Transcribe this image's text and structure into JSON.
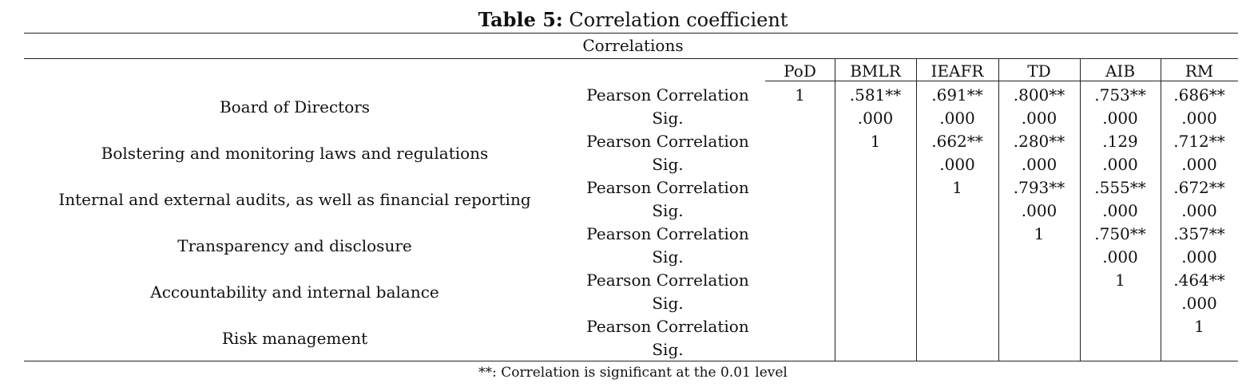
{
  "caption": {
    "bold": "Table 5:",
    "text": " Correlation coefficient"
  },
  "subtitle": "Correlations",
  "columns": [
    "PoD",
    "BMLR",
    "IEAFR",
    "TD",
    "AIB",
    "RM"
  ],
  "rows": [
    {
      "label": "Board of Directors",
      "stat1": "Pearson Correlation",
      "stat2": "Sig.",
      "pearson": [
        "1",
        ".581**",
        ".691**",
        ".800**",
        ".753**",
        ".686**"
      ],
      "sig": [
        "",
        ".000",
        ".000",
        ".000",
        ".000",
        ".000"
      ]
    },
    {
      "label": "Bolstering and monitoring laws and regulations",
      "stat1": "Pearson Correlation",
      "stat2": "Sig.",
      "pearson": [
        "",
        "1",
        ".662**",
        ".280**",
        ".129",
        ".712**"
      ],
      "sig": [
        "",
        "",
        ".000",
        ".000",
        ".000",
        ".000"
      ]
    },
    {
      "label": "Internal and external audits, as well as financial reporting",
      "stat1": "Pearson Correlation",
      "stat2": "Sig.",
      "pearson": [
        "",
        "",
        "1",
        ".793**",
        ".555**",
        ".672**"
      ],
      "sig": [
        "",
        "",
        "",
        ".000",
        ".000",
        ".000"
      ]
    },
    {
      "label": "Transparency and disclosure",
      "stat1": "Pearson Correlation",
      "stat2": "Sig.",
      "pearson": [
        "",
        "",
        "",
        "1",
        ".750**",
        ".357**"
      ],
      "sig": [
        "",
        "",
        "",
        "",
        ".000",
        ".000"
      ]
    },
    {
      "label": "Accountability and internal balance",
      "stat1": "Pearson Correlation",
      "stat2": "Sig.",
      "pearson": [
        "",
        "",
        "",
        "",
        "1",
        ".464**"
      ],
      "sig": [
        "",
        "",
        "",
        "",
        "",
        ".000"
      ]
    },
    {
      "label": "Risk management",
      "stat1": "Pearson Correlation",
      "stat2": "Sig.",
      "pearson": [
        "",
        "",
        "",
        "",
        "",
        "1"
      ],
      "sig": [
        "",
        "",
        "",
        "",
        "",
        ""
      ]
    }
  ],
  "footnote": "**: Correlation is significant at the 0.01 level"
}
